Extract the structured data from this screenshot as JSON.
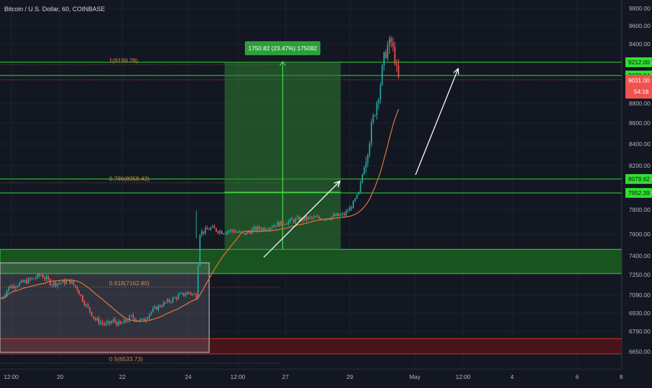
{
  "header": {
    "title": "Bitcoin / U.S. Dollar, 60, COINBASE"
  },
  "colors": {
    "background": "#131722",
    "up": "#26a69a",
    "down": "#ef5350",
    "ma": "#e8753a",
    "fib": "#d4894a",
    "support_zone": "#1b5e20",
    "support_line": "#2fe02f",
    "demand_zone": "#4a1519",
    "demand_line": "#d32f2f",
    "range_box": "#7c7f88",
    "measure": "#2e7d32",
    "price_tag": "#ef5350",
    "level_tag": "#2fe02f",
    "axis_text": "#b2b5be",
    "arrow": "#ffffff"
  },
  "chart_data": {
    "type": "candlestick",
    "symbol": "Bitcoin / U.S. Dollar",
    "interval": "60",
    "exchange": "COINBASE",
    "x_ticks": [
      "12:00",
      "20",
      "22",
      "24",
      "12:00",
      "27",
      "29",
      "May",
      "12:00",
      "4",
      "6",
      "8"
    ],
    "y_ticks": [
      "9800.00",
      "9600.00",
      "9400.00",
      "8800.00",
      "8600.00",
      "8400.00",
      "8200.00",
      "7800.00",
      "7600.00",
      "7400.00",
      "7250.00",
      "7090.00",
      "6930.00",
      "6790.00",
      "6650.00"
    ],
    "tick_values": [
      9800,
      9600,
      9400,
      8800,
      8600,
      8400,
      8200,
      7800,
      7600,
      7400,
      7250,
      7090,
      6930,
      6790,
      6650
    ],
    "horizontal_levels": [
      9212.0,
      9072.04,
      8079.62,
      7952.39
    ],
    "level_tags": [
      "9212.00",
      "9072.04",
      "8079.62",
      "7952.39"
    ],
    "last_price": 9031.0,
    "last_price_tag": "9031.00",
    "countdown": "54:16",
    "fib_levels": [
      {
        "label": "1(9199.28)",
        "value": 9199.28
      },
      {
        "label": "0.786(8058.42)",
        "value": 8058.42
      },
      {
        "label": "0.618(7162.80)",
        "value": 7162.8
      },
      {
        "label": "0.5(6533.73)",
        "value": 6533.73
      }
    ],
    "measure_label": "1750.82 (23.47%) 175082",
    "zones": {
      "support": [
        7260,
        7460
      ],
      "demand": [
        6625,
        6740
      ]
    },
    "candles_anchor": [
      [
        0,
        7060
      ],
      [
        4,
        7150
      ],
      [
        10,
        7180
      ],
      [
        16,
        7210
      ],
      [
        22,
        7250
      ],
      [
        28,
        7180
      ],
      [
        34,
        7190
      ],
      [
        38,
        7200
      ],
      [
        42,
        7140
      ],
      [
        46,
        7020
      ],
      [
        52,
        6880
      ],
      [
        58,
        6840
      ],
      [
        62,
        6870
      ],
      [
        66,
        6840
      ],
      [
        72,
        6900
      ],
      [
        78,
        6870
      ],
      [
        82,
        6930
      ],
      [
        86,
        6980
      ],
      [
        92,
        7030
      ],
      [
        98,
        7080
      ],
      [
        104,
        7110
      ],
      [
        108,
        7080
      ],
      [
        110,
        7610
      ],
      [
        116,
        7650
      ],
      [
        122,
        7620
      ],
      [
        128,
        7630
      ],
      [
        134,
        7600
      ],
      [
        140,
        7640
      ],
      [
        146,
        7650
      ],
      [
        152,
        7680
      ],
      [
        158,
        7700
      ],
      [
        164,
        7720
      ],
      [
        170,
        7730
      ],
      [
        176,
        7730
      ],
      [
        182,
        7740
      ],
      [
        190,
        7760
      ],
      [
        194,
        7830
      ],
      [
        198,
        7950
      ],
      [
        200,
        8120
      ],
      [
        202,
        8280
      ],
      [
        204,
        8460
      ],
      [
        206,
        8640
      ],
      [
        208,
        8820
      ],
      [
        210,
        9000
      ],
      [
        212,
        9250
      ],
      [
        214,
        9380
      ],
      [
        216,
        9420
      ],
      [
        218,
        9250
      ],
      [
        219,
        9120
      ],
      [
        220,
        9031
      ]
    ]
  }
}
